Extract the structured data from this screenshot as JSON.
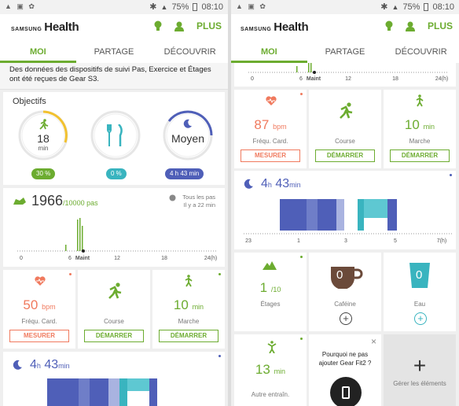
{
  "status": {
    "battery": "75%",
    "time": "08:10",
    "net": "4G"
  },
  "brand": {
    "samsung": "SAMSUNG",
    "health": "Health"
  },
  "header": {
    "more_label": "PLUS"
  },
  "tabs": [
    {
      "label": "MOI"
    },
    {
      "label": "PARTAGE"
    },
    {
      "label": "DÉCOUVRIR"
    }
  ],
  "notice": "Des données des dispositifs de suivi Pas, Exercice et Étages ont été reçues de Gear S3.",
  "objectives": {
    "title": "Objectifs",
    "exercise": {
      "value": "18",
      "unit": "min",
      "badge": "30 %",
      "progress": 0.3
    },
    "food": {
      "badge": "0 %",
      "progress": 0
    },
    "sleep": {
      "value": "Moyen",
      "badge": "4 h 43 min",
      "progress": 0.55
    }
  },
  "steps": {
    "value": "1966",
    "goal": "/10000",
    "unit": "pas",
    "sync_line1": "Tous les pas",
    "sync_line2": "Il y a 22 min",
    "axis": [
      "0",
      "6",
      "Maint",
      "12",
      "18",
      "24(h)"
    ]
  },
  "cards": {
    "heart": {
      "value": "50",
      "value2": "87",
      "unit": "bpm",
      "label": "Fréqu. Card.",
      "button": "MESURER"
    },
    "run": {
      "label": "Course",
      "button": "DÉMARRER"
    },
    "walk": {
      "value": "10",
      "unit": "min",
      "label": "Marche",
      "button": "DÉMARRER"
    }
  },
  "sleep": {
    "h": "4",
    "h_unit": "h",
    "m": "43",
    "m_unit": "min",
    "axis": [
      "23",
      "1",
      "3",
      "5",
      "7(h)"
    ]
  },
  "floors": {
    "value": "1",
    "goal": "/10",
    "label": "Étages"
  },
  "caffeine": {
    "value": "0",
    "label": "Caféine"
  },
  "water": {
    "value": "0",
    "label": "Eau"
  },
  "other": {
    "value": "13",
    "unit": "min",
    "label": "Autre entraîn."
  },
  "gear_prompt": "Pourquoi ne pas ajouter Gear Fit2 ?",
  "manage_label": "Gérer les éléments",
  "colors": {
    "accent": "#6cac30",
    "heart": "#f07a5e",
    "sleep": "#4f5fb8",
    "teal": "#39b4bf"
  }
}
